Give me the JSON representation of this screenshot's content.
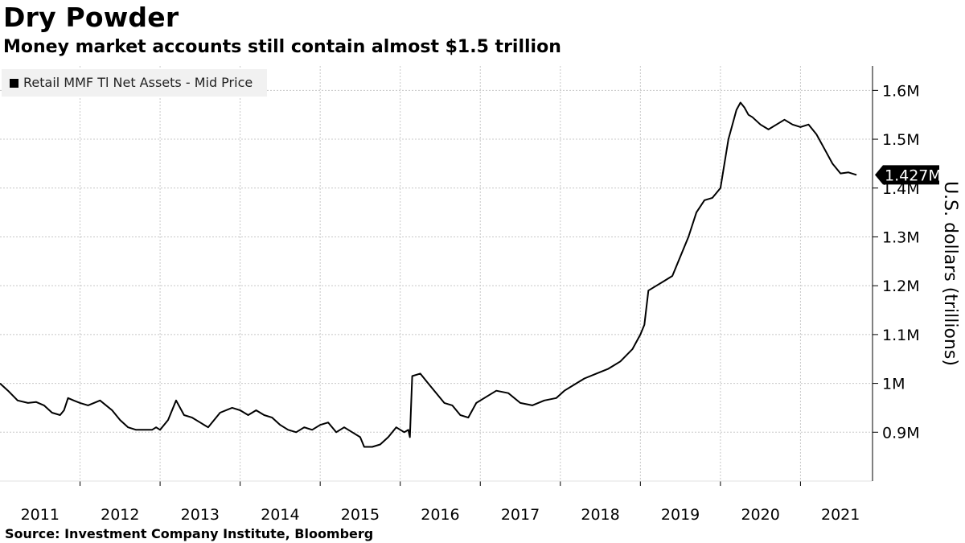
{
  "title": "Dry Powder",
  "subtitle": "Money market accounts still contain almost $1.5 trillion",
  "source": "Source: Investment Company Institute, Bloomberg",
  "chart_data": {
    "type": "line",
    "legend": "Retail MMF Tl Net Assets - Mid Price",
    "legend_position": "top-left",
    "ylabel": "U.S. dollars (trillions)",
    "y_axis_side": "right",
    "ylim": [
      0.8,
      1.65
    ],
    "xlim": [
      2010.5,
      2021.4
    ],
    "grid": true,
    "yticks": [
      0.9,
      1.0,
      1.1,
      1.2,
      1.3,
      1.4,
      1.5,
      1.6
    ],
    "ytick_labels": [
      "0.9M",
      "1M",
      "1.1M",
      "1.2M",
      "1.3M",
      "1.4M",
      "1.5M",
      "1.6M"
    ],
    "xtick_labels": [
      "2011",
      "2012",
      "2013",
      "2014",
      "2015",
      "2016",
      "2017",
      "2018",
      "2019",
      "2020",
      "2021"
    ],
    "last_value_label": "1.427M",
    "color": "#000000",
    "series": [
      {
        "x": [
          2010.5,
          2010.6,
          2010.72,
          2010.85,
          2010.95,
          2011.05,
          2011.15,
          2011.25,
          2011.3,
          2011.35,
          2011.42,
          2011.5,
          2011.6,
          2011.75,
          2011.9,
          2012.0,
          2012.1,
          2012.2,
          2012.3,
          2012.4,
          2012.45,
          2012.5,
          2012.6,
          2012.7,
          2012.8,
          2012.9,
          2013.0,
          2013.1,
          2013.25,
          2013.4,
          2013.5,
          2013.6,
          2013.7,
          2013.8,
          2013.9,
          2014.0,
          2014.1,
          2014.2,
          2014.3,
          2014.4,
          2014.5,
          2014.6,
          2014.7,
          2014.8,
          2014.9,
          2015.0,
          2015.05,
          2015.15,
          2015.25,
          2015.35,
          2015.45,
          2015.55,
          2015.6,
          2015.62,
          2015.65,
          2015.75,
          2015.85,
          2015.95,
          2016.05,
          2016.15,
          2016.25,
          2016.35,
          2016.45,
          2016.55,
          2016.7,
          2016.85,
          2017.0,
          2017.15,
          2017.3,
          2017.45,
          2017.55,
          2017.65,
          2017.8,
          2017.95,
          2018.1,
          2018.25,
          2018.4,
          2018.5,
          2018.55,
          2018.6,
          2018.7,
          2018.8,
          2018.9,
          2019.0,
          2019.1,
          2019.2,
          2019.3,
          2019.4,
          2019.5,
          2019.6,
          2019.7,
          2019.75,
          2019.8,
          2019.85,
          2019.9,
          2020.0,
          2020.1,
          2020.2,
          2020.3,
          2020.4,
          2020.5,
          2020.6,
          2020.7,
          2020.8,
          2020.9,
          2021.0,
          2021.1,
          2021.2
        ],
        "y": [
          1.0,
          0.985,
          0.965,
          0.96,
          0.962,
          0.955,
          0.94,
          0.935,
          0.945,
          0.97,
          0.965,
          0.96,
          0.955,
          0.965,
          0.945,
          0.925,
          0.91,
          0.905,
          0.905,
          0.905,
          0.91,
          0.905,
          0.925,
          0.965,
          0.935,
          0.93,
          0.92,
          0.91,
          0.94,
          0.95,
          0.945,
          0.935,
          0.945,
          0.935,
          0.93,
          0.915,
          0.905,
          0.9,
          0.91,
          0.905,
          0.915,
          0.92,
          0.9,
          0.91,
          0.9,
          0.89,
          0.87,
          0.87,
          0.875,
          0.89,
          0.91,
          0.9,
          0.905,
          0.89,
          1.015,
          1.02,
          1.0,
          0.98,
          0.96,
          0.955,
          0.935,
          0.93,
          0.96,
          0.97,
          0.985,
          0.98,
          0.96,
          0.955,
          0.965,
          0.97,
          0.985,
          0.995,
          1.01,
          1.02,
          1.03,
          1.045,
          1.07,
          1.1,
          1.12,
          1.19,
          1.2,
          1.21,
          1.22,
          1.26,
          1.3,
          1.35,
          1.375,
          1.38,
          1.4,
          1.5,
          1.56,
          1.575,
          1.565,
          1.55,
          1.545,
          1.53,
          1.52,
          1.53,
          1.54,
          1.53,
          1.525,
          1.53,
          1.51,
          1.48,
          1.45,
          1.43,
          1.432,
          1.427
        ]
      }
    ]
  }
}
